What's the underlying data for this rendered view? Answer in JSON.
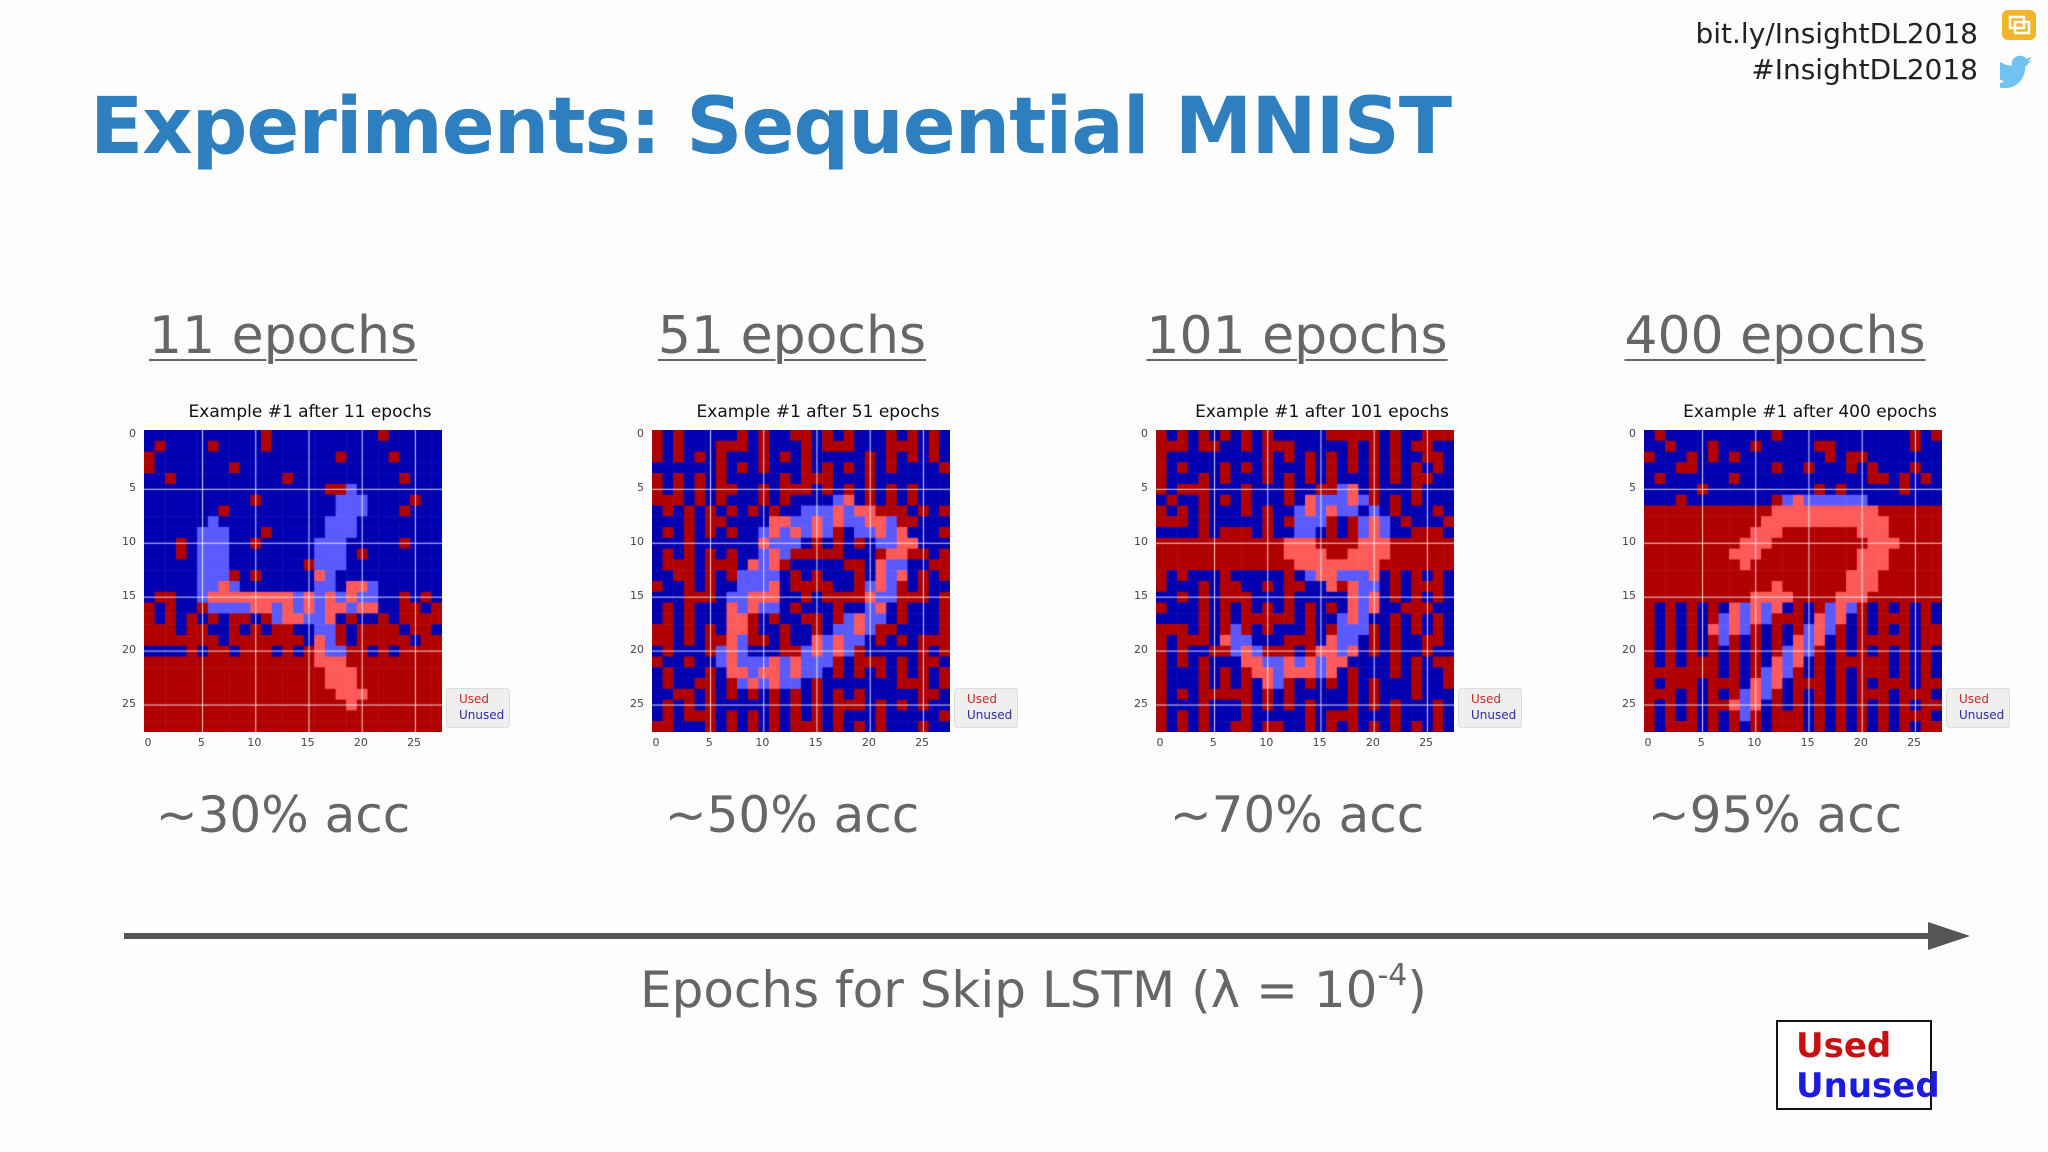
{
  "header": {
    "title": "Experiments: Sequential MNIST",
    "link": "bit.ly/InsightDL2018",
    "hashtag": "#InsightDL2018"
  },
  "colors": {
    "title": "#2d7fbf",
    "used": "#b00000",
    "unused": "#0000b0",
    "stroke_used": "#ff5a5a",
    "stroke_unused": "#5a5aff"
  },
  "panels": [
    {
      "epochs_label": "11 epochs",
      "plot_title": "Example #1 after 11 epochs",
      "accuracy": "~30% acc",
      "digit": "4"
    },
    {
      "epochs_label": "51 epochs",
      "plot_title": "Example #1 after 51 epochs",
      "accuracy": "~50% acc",
      "digit": "0"
    },
    {
      "epochs_label": "101 epochs",
      "plot_title": "Example #1 after 101 epochs",
      "accuracy": "~70% acc",
      "digit": "9"
    },
    {
      "epochs_label": "400 epochs",
      "plot_title": "Example #1 after 400 epochs",
      "accuracy": "~95% acc",
      "digit": "2"
    }
  ],
  "plot": {
    "y_ticks": [
      "0",
      "5",
      "10",
      "15",
      "20",
      "25"
    ],
    "x_ticks": [
      "0",
      "5",
      "10",
      "15",
      "20",
      "25"
    ],
    "legend_used": "Used",
    "legend_unused": "Unused"
  },
  "axis": {
    "label_prefix": "Epochs for Skip LSTM (λ = 10",
    "label_exp": "-4",
    "label_suffix": ")"
  },
  "key": {
    "used": "Used",
    "unused": "Unused"
  },
  "icons": {
    "slides": "slides-icon",
    "bird": "twitter-bird-icon",
    "arrow": "arrow-right-icon"
  }
}
